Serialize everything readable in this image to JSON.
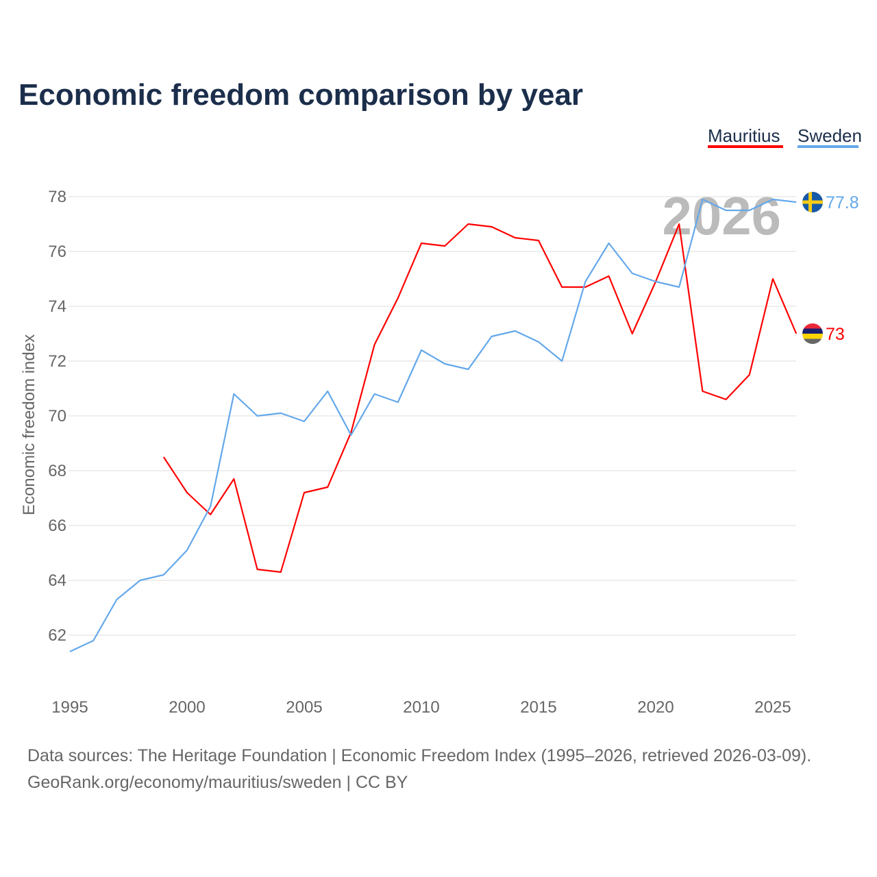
{
  "chart_data": {
    "type": "line",
    "title": "Economic freedom comparison by year",
    "xlabel": "",
    "ylabel": "Economic freedom index",
    "xlim": [
      1995,
      2026
    ],
    "ylim": [
      60.5,
      79.5
    ],
    "x_ticks": [
      "1995",
      "2000",
      "2005",
      "2010",
      "2015",
      "2020",
      "2025"
    ],
    "y_ticks": [
      "62",
      "64",
      "66",
      "68",
      "70",
      "72",
      "74",
      "76",
      "78"
    ],
    "grid": true,
    "legend_position": "top-right",
    "watermark_year": "2026",
    "series": [
      {
        "name": "Mauritius",
        "color": "#ff0000",
        "end_label": "73",
        "x": [
          1999,
          2000,
          2001,
          2002,
          2003,
          2004,
          2005,
          2006,
          2007,
          2008,
          2009,
          2010,
          2011,
          2012,
          2013,
          2014,
          2015,
          2016,
          2017,
          2018,
          2019,
          2020,
          2021,
          2022,
          2023,
          2024,
          2025,
          2026
        ],
        "values": [
          68.5,
          67.2,
          66.4,
          67.7,
          64.4,
          64.3,
          67.2,
          67.4,
          69.4,
          72.6,
          74.3,
          76.3,
          76.2,
          77.0,
          76.9,
          76.5,
          76.4,
          74.7,
          74.7,
          75.1,
          73.0,
          74.9,
          77.0,
          70.9,
          70.6,
          71.5,
          75.0,
          73.0
        ]
      },
      {
        "name": "Sweden",
        "color": "#64a8ea",
        "end_label": "77.8",
        "x": [
          1995,
          1996,
          1997,
          1998,
          1999,
          2000,
          2001,
          2002,
          2003,
          2004,
          2005,
          2006,
          2007,
          2008,
          2009,
          2010,
          2011,
          2012,
          2013,
          2014,
          2015,
          2016,
          2017,
          2018,
          2019,
          2020,
          2021,
          2022,
          2023,
          2024,
          2025,
          2026
        ],
        "values": [
          61.4,
          61.8,
          63.3,
          64.0,
          64.2,
          65.1,
          66.7,
          70.8,
          70.0,
          70.1,
          69.8,
          70.9,
          69.3,
          70.8,
          70.5,
          72.4,
          71.9,
          71.7,
          72.9,
          73.1,
          72.7,
          72.0,
          74.9,
          76.3,
          75.2,
          74.9,
          74.7,
          77.9,
          77.5,
          77.5,
          77.9,
          77.8
        ]
      }
    ],
    "source_lines": [
      "Data sources: The Heritage Foundation | Economic Freedom Index (1995–2026, retrieved 2026-03-09).",
      "GeoRank.org/economy/mauritius/sweden | CC BY"
    ]
  }
}
